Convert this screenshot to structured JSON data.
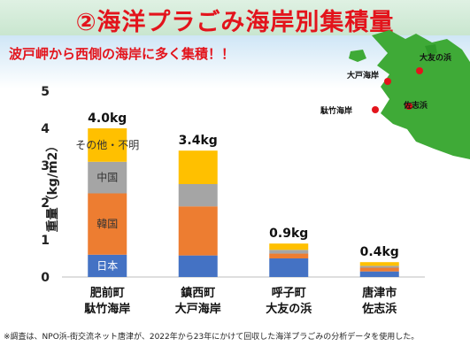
{
  "slide": {
    "title": "②海洋プラごみ海岸別集積量",
    "subtitle": "波戸岬から西側の海岸に多く集積！！",
    "footnote": "※調査は、NPO浜-街交流ネット唐津が、2022年から23年にかけて回収した海洋プラごみの分析データを使用した。"
  },
  "map": {
    "labels": [
      "大友の浜",
      "大戸海岸",
      "駄竹海岸",
      "佐志浜"
    ],
    "land_color": "#3faa37",
    "marker_color": "#e3141c"
  },
  "chart_data": {
    "type": "bar",
    "stacked": true,
    "ylabel": "重量（kg/m2）",
    "ylim": [
      0,
      5
    ],
    "yticks": [
      0,
      1,
      2,
      3,
      4,
      5
    ],
    "grid": false,
    "categories": [
      [
        "肥前町",
        "駄竹海岸"
      ],
      [
        "鎮西町",
        "大戸海岸"
      ],
      [
        "呼子町",
        "大友の浜"
      ],
      [
        "唐津市",
        "佐志浜"
      ]
    ],
    "totals_labels": [
      "4.0kg",
      "3.4kg",
      "0.9kg",
      "0.4kg"
    ],
    "series": [
      {
        "name": "日本",
        "color": "#4472c4",
        "values": [
          0.6,
          0.58,
          0.5,
          0.15
        ]
      },
      {
        "name": "韓国",
        "color": "#ed7d31",
        "values": [
          1.65,
          1.32,
          0.13,
          0.1
        ]
      },
      {
        "name": "中国",
        "color": "#a5a5a5",
        "values": [
          0.85,
          0.6,
          0.1,
          0.05
        ]
      },
      {
        "name": "その他・不明",
        "color": "#ffc000",
        "values": [
          0.9,
          0.9,
          0.17,
          0.1
        ]
      }
    ],
    "segment_label_bar": 0
  }
}
